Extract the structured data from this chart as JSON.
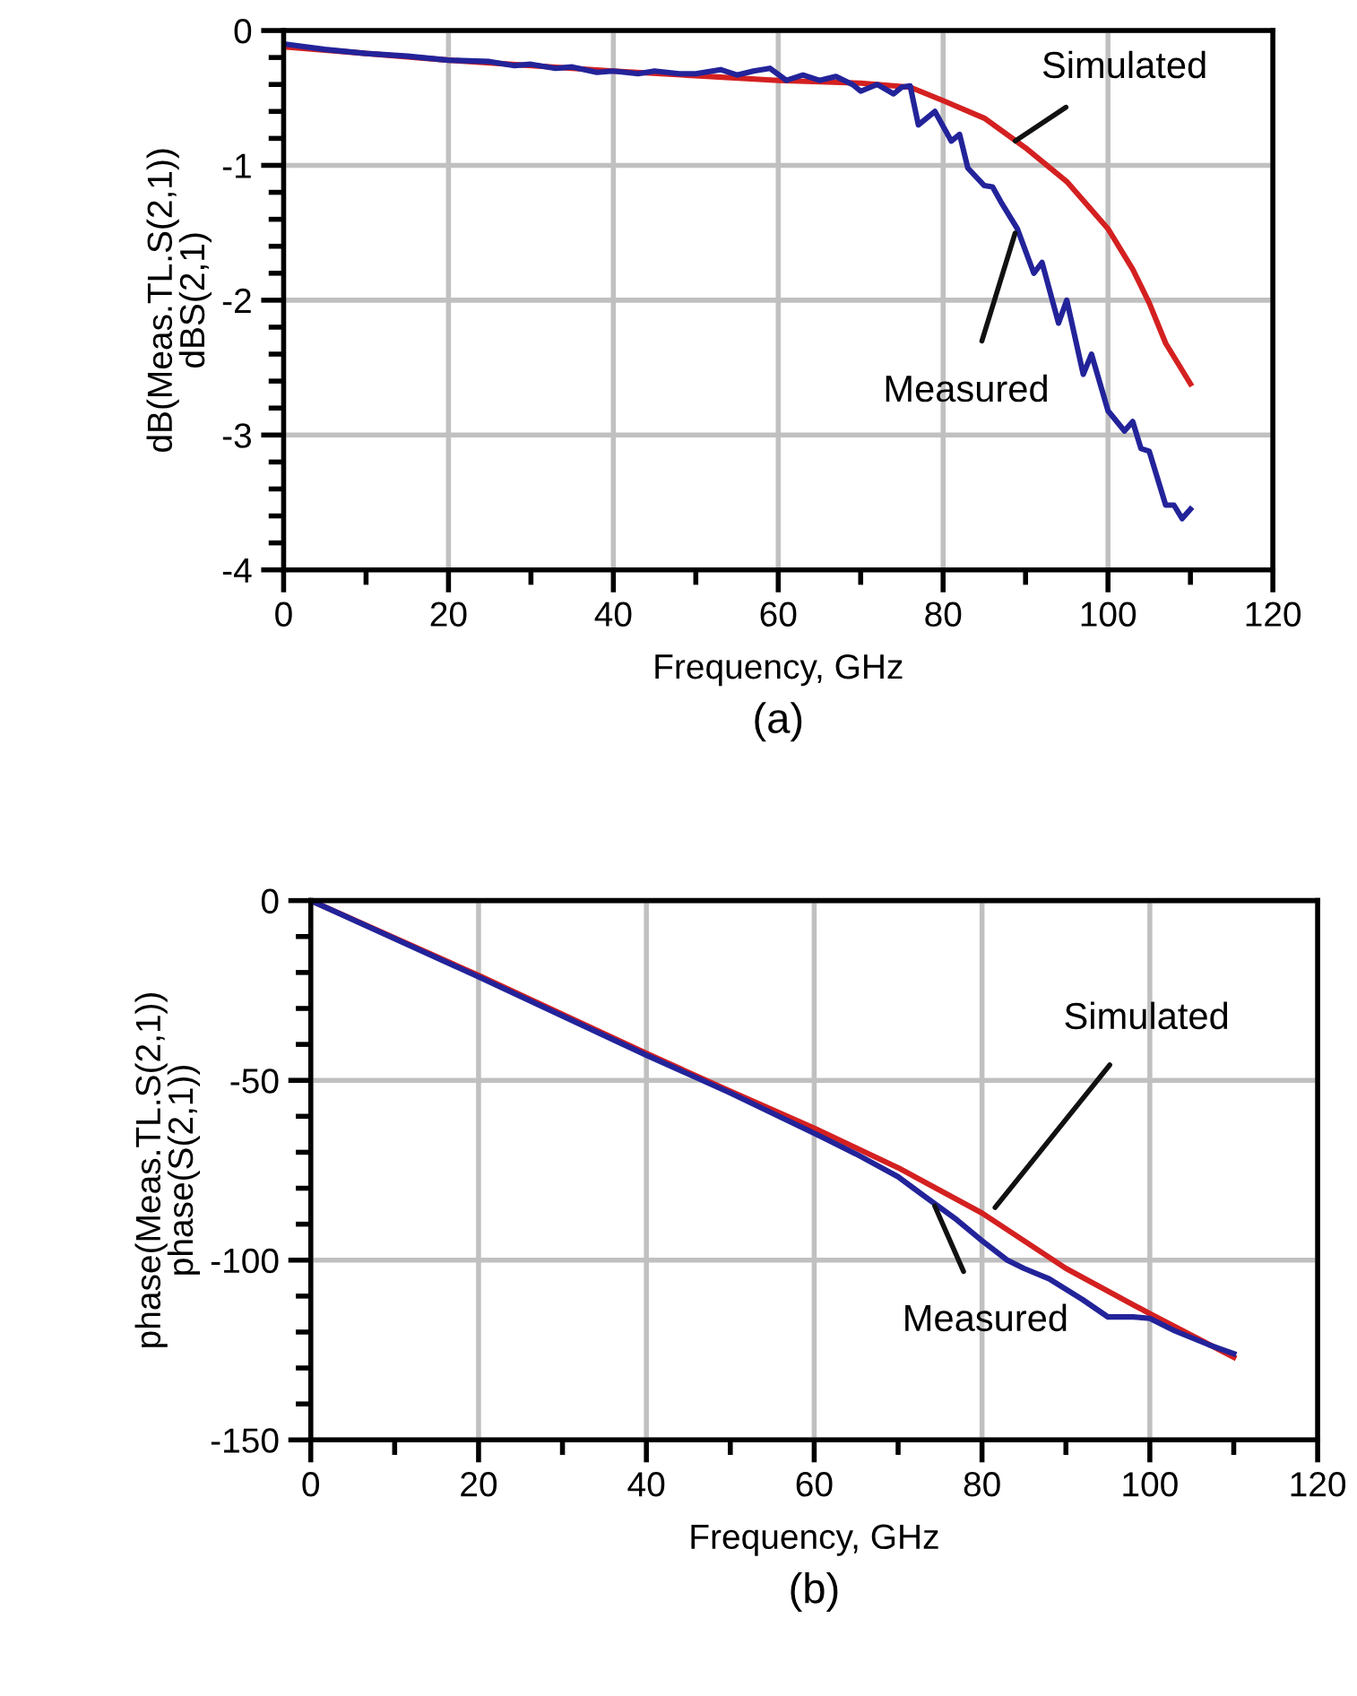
{
  "chart_data": [
    {
      "type": "line",
      "title": "(a)",
      "xlabel": "Frequency, GHz",
      "ylabel": "dB(Meas.TL.S(2,1))\ndBS(2,1)",
      "xlim": [
        0,
        120
      ],
      "ylim": [
        -4,
        0
      ],
      "xticks": [
        0,
        {
          "value": 10,
          "label": null
        },
        20,
        {
          "value": 30,
          "label": null
        },
        40,
        {
          "value": 50,
          "label": null
        },
        60,
        {
          "value": 70,
          "label": null
        },
        80,
        {
          "value": 90,
          "label": null
        },
        100,
        {
          "value": 110,
          "label": null
        },
        120
      ],
      "yticks": [
        -4,
        {
          "value": -3.8,
          "label": null
        },
        {
          "value": -3.6,
          "label": null
        },
        {
          "value": -3.4,
          "label": null
        },
        {
          "value": -3.2,
          "label": null
        },
        -3,
        {
          "value": -2.8,
          "label": null
        },
        {
          "value": -2.6,
          "label": null
        },
        {
          "value": -2.4,
          "label": null
        },
        {
          "value": -2.2,
          "label": null
        },
        -2,
        {
          "value": -1.8,
          "label": null
        },
        {
          "value": -1.6,
          "label": null
        },
        {
          "value": -1.4,
          "label": null
        },
        {
          "value": -1.2,
          "label": null
        },
        -1,
        {
          "value": -0.8,
          "label": null
        },
        {
          "value": -0.6,
          "label": null
        },
        {
          "value": -0.4,
          "label": null
        },
        {
          "value": -0.2,
          "label": null
        },
        0
      ],
      "grid": true,
      "legend": false,
      "line_style": "solid",
      "marker": "none",
      "series": [
        {
          "color": "#d42020",
          "x": [
            0,
            20,
            40,
            60,
            70,
            76,
            80,
            85,
            90,
            95,
            100,
            103,
            105,
            107,
            110
          ],
          "values": [
            -0.12,
            -0.22,
            -0.3,
            -0.37,
            -0.39,
            -0.42,
            -0.52,
            -0.65,
            -0.87,
            -1.12,
            -1.47,
            -1.77,
            -2.02,
            -2.32,
            -2.62
          ]
        },
        {
          "color": "#23239a",
          "x": [
            0,
            5,
            10,
            15,
            20,
            25,
            28,
            30,
            33,
            35,
            38,
            40,
            43,
            45,
            48,
            50,
            53,
            55,
            57,
            59,
            61,
            63,
            65,
            67,
            69,
            70,
            72,
            74,
            75,
            76,
            77,
            79,
            81,
            82,
            83,
            85,
            86,
            87,
            89,
            91,
            92,
            94,
            95,
            97,
            98,
            100,
            102,
            103,
            104,
            105,
            107,
            108,
            109,
            110
          ],
          "values": [
            -0.1,
            -0.14,
            -0.17,
            -0.19,
            -0.22,
            -0.23,
            -0.26,
            -0.25,
            -0.28,
            -0.27,
            -0.31,
            -0.3,
            -0.32,
            -0.3,
            -0.32,
            -0.32,
            -0.29,
            -0.33,
            -0.3,
            -0.28,
            -0.37,
            -0.33,
            -0.37,
            -0.34,
            -0.4,
            -0.45,
            -0.4,
            -0.47,
            -0.42,
            -0.41,
            -0.7,
            -0.6,
            -0.82,
            -0.77,
            -1.02,
            -1.15,
            -1.16,
            -1.27,
            -1.47,
            -1.8,
            -1.72,
            -2.17,
            -2.0,
            -2.55,
            -2.4,
            -2.82,
            -2.97,
            -2.9,
            -3.1,
            -3.12,
            -3.52,
            -3.52,
            -3.62,
            -3.55
          ]
        }
      ],
      "annotations": [
        {
          "text": "Simulated",
          "x": 88,
          "y": -0.85
        },
        {
          "text": "Measured",
          "x": 89,
          "y": -1.45
        }
      ]
    },
    {
      "type": "line",
      "title": "(b)",
      "xlabel": "Frequency, GHz",
      "ylabel": "phase(Meas.TL.S(2,1))\nphase(S(2,1))",
      "xlim": [
        0,
        120
      ],
      "ylim": [
        -150,
        0
      ],
      "xticks": [
        0,
        {
          "value": 10,
          "label": null
        },
        20,
        {
          "value": 30,
          "label": null
        },
        40,
        {
          "value": 50,
          "label": null
        },
        60,
        {
          "value": 70,
          "label": null
        },
        80,
        {
          "value": 90,
          "label": null
        },
        100,
        {
          "value": 110,
          "label": null
        },
        120
      ],
      "yticks": [
        -150,
        {
          "value": -140,
          "label": null
        },
        {
          "value": -130,
          "label": null
        },
        {
          "value": -120,
          "label": null
        },
        {
          "value": -110,
          "label": null
        },
        -100,
        {
          "value": -90,
          "label": null
        },
        {
          "value": -80,
          "label": null
        },
        {
          "value": -70,
          "label": null
        },
        {
          "value": -60,
          "label": null
        },
        -50,
        {
          "value": -40,
          "label": null
        },
        {
          "value": -30,
          "label": null
        },
        {
          "value": -20,
          "label": null
        },
        {
          "value": -10,
          "label": null
        },
        0
      ],
      "grid": true,
      "legend": false,
      "line_style": "solid",
      "marker": "none",
      "series": [
        {
          "color": "#d42020",
          "x": [
            0,
            20,
            40,
            50,
            60,
            70,
            80,
            90,
            100,
            110
          ],
          "values": [
            0,
            -20.8,
            -42.5,
            -53,
            -63.3,
            -74.3,
            -86.9,
            -102.3,
            -114.9,
            -127
          ]
        },
        {
          "color": "#23239a",
          "x": [
            0,
            20,
            40,
            50,
            60,
            65,
            70,
            73,
            77,
            80,
            83,
            85,
            88,
            92,
            95,
            98,
            100,
            103,
            107,
            110
          ],
          "values": [
            0,
            -21.2,
            -43,
            -53.5,
            -64.7,
            -70.5,
            -76.8,
            -82,
            -88.8,
            -94.6,
            -100,
            -102.3,
            -105.2,
            -111,
            -115.8,
            -115.8,
            -116.2,
            -119.7,
            -123.5,
            -126
          ]
        }
      ],
      "annotations": [
        {
          "text": "Simulated",
          "x": 81,
          "y": -87
        },
        {
          "text": "Measured",
          "x": 74,
          "y": -83
        }
      ]
    }
  ]
}
